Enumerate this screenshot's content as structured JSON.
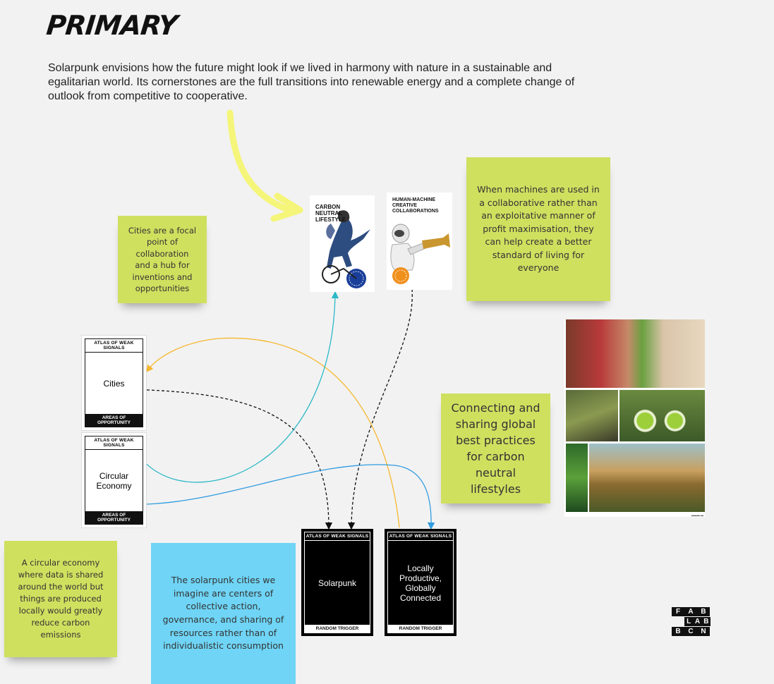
{
  "header": {
    "title": "PRIMARY"
  },
  "intro": "Solarpunk envisions how the future might look if we lived in harmony with nature in a sustainable and egalitarian world. Its cornerstones are the full transitions into renewable energy and a complete change of outlook from competitive to cooperative.",
  "notes": {
    "cities_note": "Cities are a focal point of collaboration and a hub for inventions and opportunities",
    "machines_note": "When machines are used in a collaborative rather than an exploitative manner of profit maximisation, they can help create a better standard of living for everyone",
    "connecting_note": "Connecting and sharing global best practices for carbon neutral lifestyles",
    "circular_note": "A circular economy where data is shared around the world but things are produced locally would greatly reduce carbon emissions",
    "solarpunk_cities_note": "The solarpunk cities we imagine are centers of collective action, governance, and sharing of resources rather than of individualistic consumption"
  },
  "posters": {
    "carbon": "CARBON NEUTRAL LIFESTYLE",
    "human_machine": "HUMAN-MACHINE CREATIVE COLLABORATIONS"
  },
  "cards": {
    "cities": {
      "header": "ATLAS OF WEAK SIGNALS",
      "label": "Cities",
      "footer": "AREAS OF OPPORTUNITY"
    },
    "circular": {
      "header": "ATLAS OF WEAK SIGNALS",
      "label": "Circular Economy",
      "footer": "AREAS OF OPPORTUNITY"
    },
    "solarpunk": {
      "header": "ATLAS OF WEAK SIGNALS",
      "label": "Solarpunk",
      "footer": "RANDOM TRIGGER"
    },
    "local": {
      "header": "ATLAS OF WEAK SIGNALS",
      "label": "Locally Productive, Globally Connected",
      "footer": "RANDOM TRIGGER"
    }
  },
  "logo": {
    "l1": [
      "F",
      "A",
      "B"
    ],
    "l2": [
      "L",
      "A",
      "B"
    ],
    "l3": [
      "B",
      "C",
      "N"
    ]
  },
  "colors": {
    "sticky_green": "#cfe05f",
    "sticky_blue": "#6fd4f5",
    "arrow_yellow": "#f5f57a",
    "line_orange": "#f5b82e",
    "line_teal": "#2bb8c8",
    "line_blue": "#2f9be0"
  }
}
